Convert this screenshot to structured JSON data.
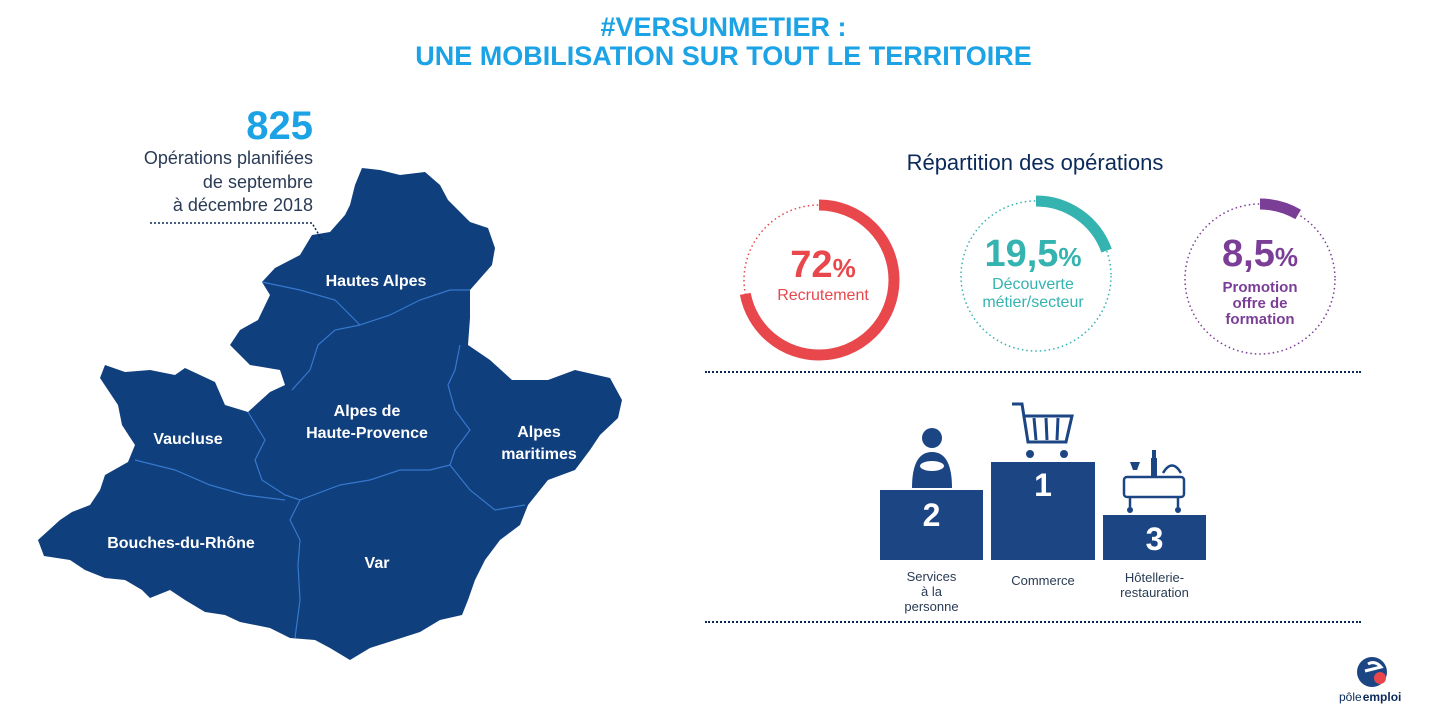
{
  "header": {
    "line1": "#VERSUNMETIER :",
    "line2": "UNE MOBILISATION SUR TOUT LE TERRITOIRE"
  },
  "summary": {
    "count": "825",
    "line1": "Opérations planifiées",
    "line2": "de septembre",
    "line3": "à décembre 2018"
  },
  "regions": [
    "Hautes Alpes",
    "Alpes de",
    "Haute-Provence",
    "Vaucluse",
    "Alpes",
    "maritimes",
    "Bouches-du-Rhône",
    "Var"
  ],
  "repartition": {
    "title": "Répartition des opérations",
    "items": [
      {
        "value": "72",
        "unit": "%",
        "label": "Recrutement",
        "fraction": 0.72,
        "color": "#e8474c"
      },
      {
        "value": "19,5",
        "unit": "%",
        "label_lines": [
          "Découverte",
          "métier/secteur"
        ],
        "fraction": 0.195,
        "color": "#34b3b0"
      },
      {
        "value": "8,5",
        "unit": "%",
        "label_lines": [
          "Promotion",
          "offre de",
          "formation"
        ],
        "fraction": 0.085,
        "color": "#7b3e96"
      }
    ]
  },
  "podium": {
    "places": [
      {
        "rank": "2",
        "label_lines": [
          "Services",
          "à la",
          "personne"
        ]
      },
      {
        "rank": "1",
        "label_lines": [
          "Commerce"
        ]
      },
      {
        "rank": "3",
        "label_lines": [
          "Hôtellerie-",
          "restauration"
        ]
      }
    ]
  },
  "colors": {
    "map_fill": "#0f3f7d",
    "title_blue": "#1ba3e6",
    "navy": "#0b2a5a",
    "podium": "#1c4584"
  },
  "logo": {
    "text_pole": "pôle",
    "text_emploi": "emploi"
  }
}
